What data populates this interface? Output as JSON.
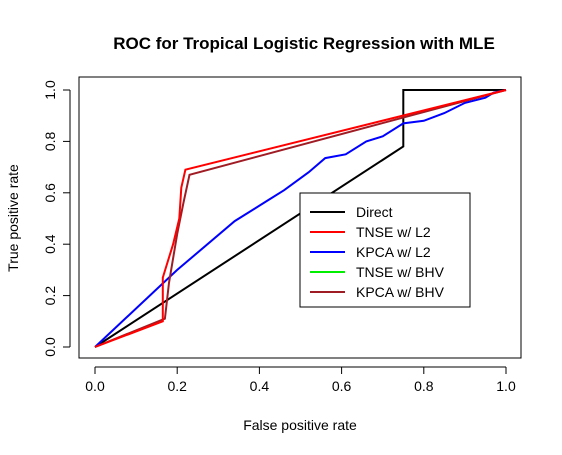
{
  "chart_data": {
    "type": "line",
    "title": "ROC for Tropical Logistic Regression with MLE",
    "xlabel": "False positive rate",
    "ylabel": "True positive rate",
    "xlim": [
      -0.04,
      1.04
    ],
    "ylim": [
      -0.04,
      1.04
    ],
    "xticks": [
      "0.0",
      "0.2",
      "0.4",
      "0.6",
      "0.8",
      "1.0"
    ],
    "yticks": [
      "0.0",
      "0.2",
      "0.4",
      "0.6",
      "0.8",
      "1.0"
    ],
    "grid": false,
    "legend_position": "center-right",
    "series": [
      {
        "name": "Direct",
        "color": "#000000",
        "points": [
          [
            0,
            0
          ],
          [
            0.75,
            0.78
          ],
          [
            0.75,
            1.0
          ],
          [
            1.0,
            1.0
          ]
        ]
      },
      {
        "name": "TNSE w/ L2",
        "color": "#ff0000",
        "points": [
          [
            0,
            0
          ],
          [
            0.165,
            0.1
          ],
          [
            0.165,
            0.27
          ],
          [
            0.19,
            0.4
          ],
          [
            0.205,
            0.5
          ],
          [
            0.21,
            0.62
          ],
          [
            0.22,
            0.69
          ],
          [
            1.0,
            1.0
          ]
        ]
      },
      {
        "name": "KPCA w/ L2",
        "color": "#0000ff",
        "points": [
          [
            0,
            0
          ],
          [
            0.2,
            0.3
          ],
          [
            0.34,
            0.49
          ],
          [
            0.42,
            0.57
          ],
          [
            0.46,
            0.61
          ],
          [
            0.52,
            0.68
          ],
          [
            0.56,
            0.735
          ],
          [
            0.61,
            0.75
          ],
          [
            0.66,
            0.8
          ],
          [
            0.7,
            0.82
          ],
          [
            0.75,
            0.87
          ],
          [
            0.8,
            0.88
          ],
          [
            0.85,
            0.91
          ],
          [
            0.9,
            0.95
          ],
          [
            0.95,
            0.97
          ],
          [
            0.97,
            0.99
          ],
          [
            1.0,
            1.0
          ]
        ]
      },
      {
        "name": "TNSE w/ BHV",
        "color": "#00ee00",
        "points": []
      },
      {
        "name": "KPCA w/ BHV",
        "color": "#a01c24",
        "points": [
          [
            0,
            0
          ],
          [
            0.17,
            0.11
          ],
          [
            0.18,
            0.25
          ],
          [
            0.2,
            0.44
          ],
          [
            0.215,
            0.56
          ],
          [
            0.23,
            0.67
          ],
          [
            1.0,
            1.0
          ]
        ]
      }
    ]
  }
}
